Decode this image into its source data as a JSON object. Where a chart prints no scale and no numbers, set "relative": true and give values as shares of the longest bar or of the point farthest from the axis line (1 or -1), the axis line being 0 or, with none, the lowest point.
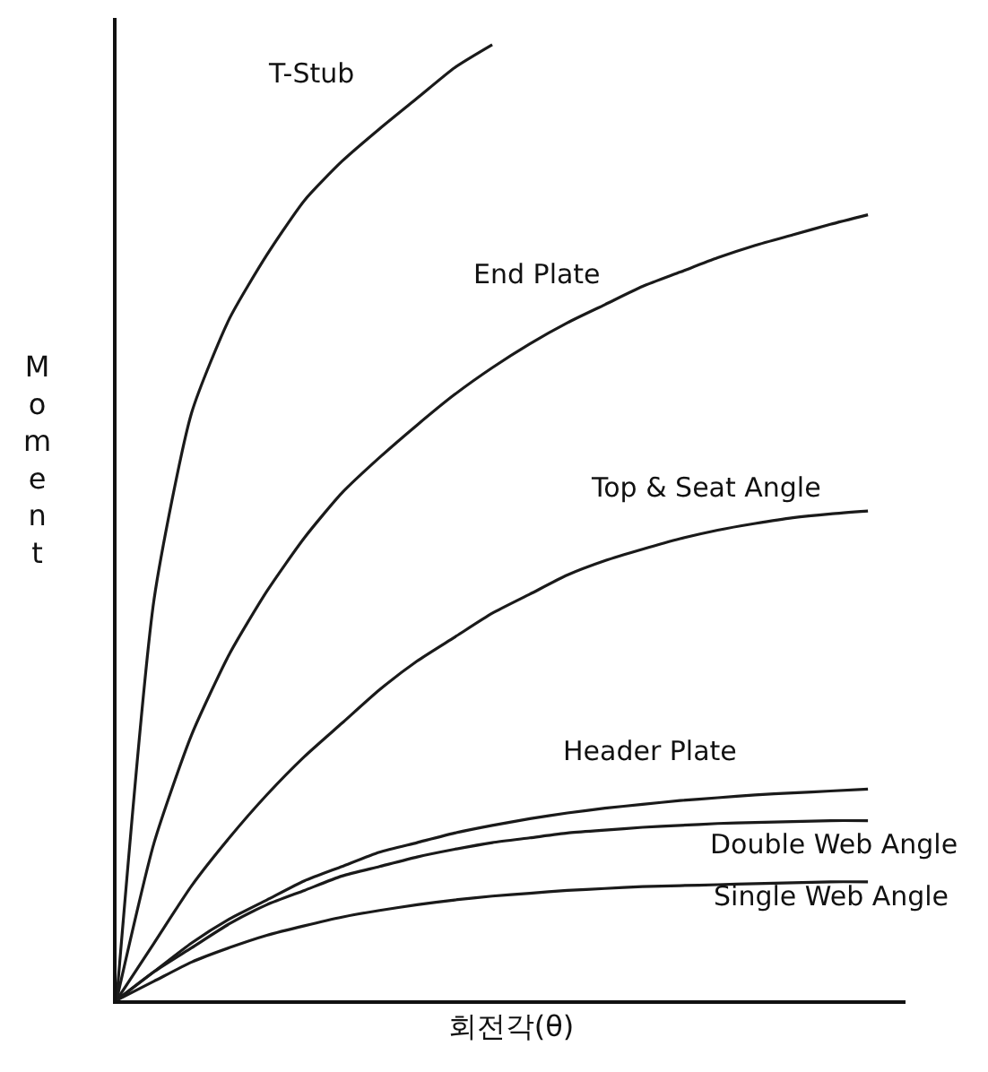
{
  "chart_data": {
    "type": "line",
    "relative": true,
    "xlabel": "회전각(θ)",
    "ylabel": "Moment",
    "legend": false,
    "marker": "none",
    "line_style": "solid",
    "categories": [
      null,
      null,
      null,
      null,
      null,
      null,
      null,
      null,
      null,
      null,
      null,
      null,
      null,
      null,
      null,
      null,
      null,
      null,
      null,
      null,
      null
    ],
    "series": [
      {
        "name": "T-Stub",
        "color": "#1a1a1a",
        "values": [
          0,
          0.42,
          0.615,
          0.713,
          0.78,
          0.837,
          0.878,
          0.912,
          0.944,
          0.976,
          1,
          null,
          null,
          null,
          null,
          null,
          null,
          null,
          null,
          null,
          null
        ]
      },
      {
        "name": "End Plate",
        "color": "#1a1a1a",
        "values": [
          0,
          0.165,
          0.278,
          0.362,
          0.428,
          0.484,
          0.531,
          0.568,
          0.602,
          0.634,
          0.662,
          0.687,
          0.709,
          0.728,
          0.747,
          0.762,
          0.777,
          0.79,
          0.801,
          0.812,
          0.822
        ]
      },
      {
        "name": "Top & Seat Angle",
        "color": "#1a1a1a",
        "values": [
          0,
          0.06,
          0.12,
          0.17,
          0.215,
          0.255,
          0.29,
          0.325,
          0.355,
          0.38,
          0.405,
          0.425,
          0.445,
          0.46,
          0.472,
          0.483,
          0.492,
          0.499,
          0.505,
          0.509,
          0.512
        ]
      },
      {
        "name": "Header Plate",
        "color": "#1a1a1a",
        "values": [
          0,
          0.03,
          0.06,
          0.085,
          0.105,
          0.125,
          0.14,
          0.155,
          0.165,
          0.175,
          0.183,
          0.19,
          0.196,
          0.201,
          0.205,
          0.209,
          0.212,
          0.215,
          0.217,
          0.219,
          0.221
        ]
      },
      {
        "name": "Double Web Angle",
        "color": "#1a1a1a",
        "values": [
          0,
          0.03,
          0.055,
          0.08,
          0.1,
          0.115,
          0.13,
          0.14,
          0.15,
          0.158,
          0.165,
          0.17,
          0.175,
          0.178,
          0.181,
          0.183,
          0.185,
          0.186,
          0.187,
          0.188,
          0.188
        ]
      },
      {
        "name": "Single Web Angle",
        "color": "#1a1a1a",
        "values": [
          0,
          0.02,
          0.04,
          0.055,
          0.068,
          0.078,
          0.087,
          0.094,
          0.1,
          0.105,
          0.109,
          0.112,
          0.115,
          0.117,
          0.119,
          0.12,
          0.121,
          0.122,
          0.123,
          0.124,
          0.124
        ]
      }
    ]
  }
}
